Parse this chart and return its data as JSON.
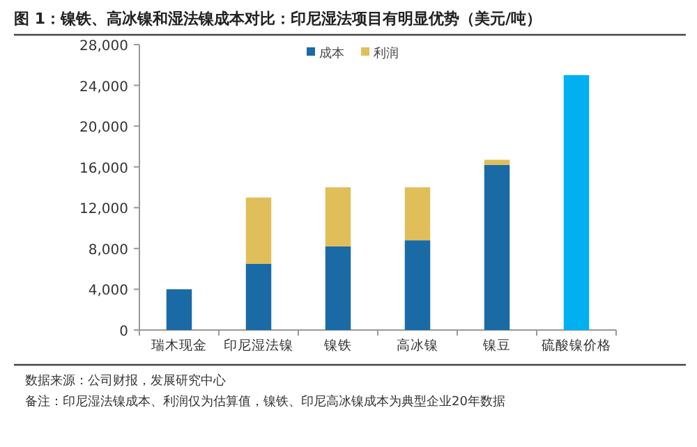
{
  "chart_data": {
    "type": "bar",
    "title": "图 1：镍铁、高冰镍和湿法镍成本对比：印尼湿法项目有明显优势（美元/吨）",
    "categories": [
      "瑞木现金",
      "印尼湿法镍",
      "镍铁",
      "高冰镍",
      "镍豆",
      "硫酸镍价格"
    ],
    "series": [
      {
        "name": "成本",
        "color": "#1a6aa6",
        "colors": [
          "#1a6aa6",
          "#1a6aa6",
          "#1a6aa6",
          "#1a6aa6",
          "#1a6aa6",
          "#00b0f0"
        ],
        "values": [
          4000,
          6500,
          8200,
          8800,
          16200,
          25000
        ]
      },
      {
        "name": "利润",
        "color": "#e0bf5a",
        "values": [
          null,
          6500,
          5800,
          5200,
          500,
          null
        ]
      }
    ],
    "stacked": true,
    "legend": "top",
    "ylim": [
      0,
      28000
    ],
    "yticks": [
      {
        "value": 0,
        "label": "0"
      },
      {
        "value": 4000,
        "label": "4,000"
      },
      {
        "value": 8000,
        "label": "8,000"
      },
      {
        "value": 12000,
        "label": "12,000"
      },
      {
        "value": 16000,
        "label": "16,000"
      },
      {
        "value": 20000,
        "label": "20,000"
      },
      {
        "value": 24000,
        "label": "24,000"
      },
      {
        "value": 28000,
        "label": "28,000"
      }
    ],
    "annotations": [
      "数据来源：公司财报，发展研究中心",
      "备注：印尼湿法镍成本、利润仅为估算值，镍铁、印尼高冰镍成本为典型企业20年数据"
    ]
  }
}
